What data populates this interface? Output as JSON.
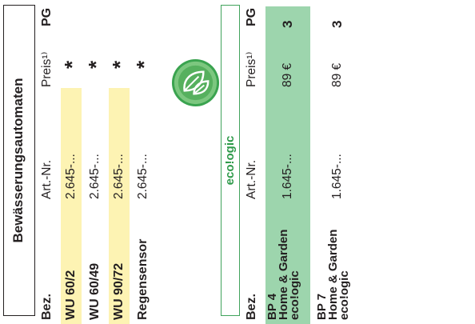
{
  "section1": {
    "title": "Bewässerungsautomaten",
    "header": {
      "bez": "Bez.",
      "art": "Art.-Nr.",
      "preis": "Preis¹⁾",
      "pg": "PG"
    },
    "rows": [
      {
        "bez": "WU 60/2",
        "art": "2.645-...",
        "mark": "*"
      },
      {
        "bez": "WU 60/49",
        "art": "2.645-...",
        "mark": "*"
      },
      {
        "bez": "WU 90/72",
        "art": "2.645-...",
        "mark": "*"
      },
      {
        "bez": "Regensensor",
        "art": "2.645-...",
        "mark": "*"
      }
    ]
  },
  "section2": {
    "title": "eco!ogic",
    "header": {
      "bez": "Bez.",
      "art": "Art.-Nr.",
      "preis": "Preis¹⁾",
      "pg": "PG"
    },
    "rows": [
      {
        "bez_lines": [
          "BP 4",
          "Home & Garden",
          "eco!ogic"
        ],
        "art": "1.645-...",
        "preis": "89 €",
        "pg": "3"
      },
      {
        "bez_lines": [
          "BP 7",
          "Home & Garden",
          "eco!ogic"
        ],
        "art": "1.645-...",
        "preis": "89 €",
        "pg": "3"
      }
    ]
  },
  "colors": {
    "highlight_yellow": "#fdf3b3",
    "highlight_green": "#9dd5ad",
    "eco_green": "#2f9a4a"
  },
  "icons": {
    "eco_logo": "leaf-logo-icon"
  }
}
